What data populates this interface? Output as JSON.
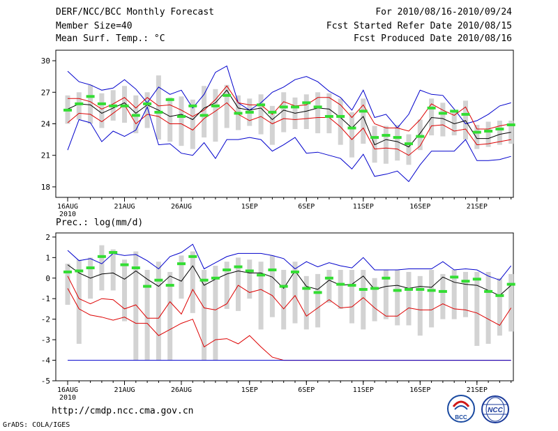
{
  "header": {
    "title": "DERF/NCC/BCC Monthly Forecast",
    "member_size": "Member Size=40",
    "variable": "Mean Surf. Temp.: °C",
    "for_range": "For 2010/08/16-2010/09/24",
    "fcst_started": "Fcst Started Refer Date 2010/08/15",
    "fcst_produced": "Fcst Produced Date 2010/08/16"
  },
  "footer": {
    "url": "http://cmdp.ncc.cma.gov.cn",
    "grads_credit": "GrADS: COLA/IGES",
    "logo_bcc": "BCC",
    "logo_ncc": "NCC"
  },
  "colors": {
    "ensemble_bar": "#d3d3d3",
    "member_marker": "#33dd33",
    "mean_line": "#000000",
    "std_line": "#dd0000",
    "envelope_line": "#0000cc"
  },
  "chart_data": [
    {
      "type": "line",
      "title": "Mean Surf. Temp.: °C",
      "ylim": [
        17,
        31
      ],
      "yticks": [
        18,
        21,
        24,
        27,
        30
      ],
      "xtick_days": [
        0,
        5,
        10,
        16,
        21,
        26,
        31,
        36
      ],
      "xtick_labels": [
        "16AUG",
        "21AUG",
        "26AUG",
        "1SEP",
        "6SEP",
        "11SEP",
        "16SEP",
        "21SEP"
      ],
      "xtick_sublabel": "2010",
      "n_days": 40,
      "series": [
        {
          "name": "max",
          "values": [
            29.0,
            28.0,
            27.7,
            27.2,
            27.4,
            28.2,
            27.3,
            26.0,
            27.5,
            26.8,
            27.2,
            25.5,
            26.8,
            28.9,
            29.5,
            26.0,
            25.3,
            26.0,
            27.0,
            27.5,
            28.2,
            28.5,
            28.0,
            27.1,
            26.5,
            25.3,
            27.2,
            24.6,
            24.9,
            23.6,
            24.9,
            27.2,
            26.8,
            26.7,
            25.4,
            24.0,
            24.3,
            24.9,
            25.7,
            26.0
          ]
        },
        {
          "name": "upper",
          "values": [
            26.4,
            26.4,
            26.1,
            25.4,
            25.9,
            26.5,
            25.5,
            26.5,
            25.7,
            25.8,
            25.3,
            24.7,
            25.3,
            26.3,
            27.6,
            26.0,
            25.8,
            25.8,
            24.9,
            26.1,
            25.7,
            25.8,
            26.5,
            26.5,
            25.8,
            24.6,
            25.8,
            24.0,
            23.6,
            23.6,
            23.3,
            24.4,
            25.9,
            25.3,
            24.8,
            25.6,
            23.5,
            23.5,
            23.8,
            24.0
          ]
        },
        {
          "name": "mean",
          "values": [
            25.4,
            25.9,
            25.8,
            25.0,
            25.5,
            26.0,
            25.0,
            25.8,
            25.3,
            24.7,
            24.9,
            24.4,
            25.5,
            26.0,
            27.2,
            25.5,
            25.3,
            25.5,
            24.4,
            25.3,
            25.0,
            25.2,
            25.5,
            25.4,
            24.6,
            23.6,
            24.7,
            22.0,
            22.5,
            22.3,
            21.8,
            23.1,
            24.6,
            24.5,
            24.0,
            24.3,
            22.6,
            22.6,
            23.0,
            23.2
          ]
        },
        {
          "name": "lower",
          "values": [
            24.1,
            25.0,
            24.9,
            24.2,
            25.0,
            25.8,
            24.0,
            24.9,
            24.7,
            24.0,
            24.0,
            23.4,
            24.5,
            25.2,
            26.0,
            24.9,
            24.3,
            24.7,
            24.0,
            24.5,
            24.4,
            24.5,
            24.6,
            24.6,
            23.7,
            22.5,
            23.6,
            21.6,
            21.7,
            21.6,
            21.0,
            21.9,
            23.8,
            23.9,
            23.3,
            23.5,
            22.0,
            22.1,
            22.3,
            22.5
          ]
        },
        {
          "name": "min",
          "values": [
            21.5,
            24.4,
            24.1,
            22.3,
            23.3,
            22.8,
            23.4,
            25.6,
            22.0,
            22.1,
            21.2,
            21.0,
            22.2,
            20.7,
            22.5,
            22.5,
            22.7,
            22.5,
            21.4,
            22.0,
            22.7,
            21.2,
            21.3,
            21.0,
            20.7,
            19.7,
            21.1,
            19.0,
            19.2,
            19.5,
            18.5,
            20.1,
            21.4,
            21.4,
            21.4,
            22.5,
            20.5,
            20.5,
            20.6,
            20.9
          ]
        },
        {
          "name": "member",
          "values": [
            25.3,
            25.9,
            26.6,
            25.9,
            25.7,
            25.7,
            24.8,
            25.9,
            25.1,
            26.3,
            24.7,
            25.7,
            24.8,
            25.7,
            26.7,
            25.0,
            25.1,
            25.8,
            25.1,
            25.6,
            25.6,
            26.0,
            25.6,
            24.7,
            24.7,
            23.6,
            25.2,
            22.7,
            22.9,
            22.7,
            22.1,
            22.8,
            25.5,
            25.0,
            25.2,
            24.9,
            23.2,
            23.3,
            23.5,
            23.9
          ]
        },
        {
          "name": "range_top",
          "values": [
            26.7,
            27.0,
            27.7,
            26.9,
            27.2,
            27.6,
            26.7,
            27.0,
            28.6,
            26.5,
            26.6,
            26.3,
            27.6,
            27.3,
            27.7,
            26.7,
            26.4,
            26.8,
            25.7,
            27.0,
            26.5,
            26.8,
            27.0,
            26.9,
            26.4,
            25.1,
            26.4,
            23.8,
            23.8,
            23.9,
            23.0,
            24.4,
            26.4,
            26.0,
            25.3,
            26.2,
            23.9,
            24.2,
            24.3,
            24.3
          ]
        },
        {
          "name": "range_bottom",
          "values": [
            24.0,
            24.4,
            24.0,
            23.6,
            24.3,
            24.1,
            23.1,
            23.6,
            22.5,
            22.3,
            21.9,
            21.6,
            22.7,
            22.3,
            23.6,
            23.4,
            23.8,
            23.0,
            22.0,
            23.2,
            23.5,
            23.5,
            23.1,
            23.1,
            22.0,
            20.8,
            22.1,
            20.3,
            20.2,
            20.5,
            20.1,
            21.5,
            22.9,
            22.8,
            22.9,
            22.5,
            21.6,
            21.8,
            22.0,
            22.1
          ]
        }
      ]
    },
    {
      "type": "line",
      "title": "Prec.: log(mm/d)",
      "ylim": [
        -5,
        2.2
      ],
      "yticks": [
        -5,
        -4,
        -3,
        -2,
        -1,
        0,
        1,
        2
      ],
      "xtick_days": [
        0,
        5,
        10,
        16,
        21,
        26,
        31,
        36
      ],
      "xtick_labels": [
        "16AUG",
        "21AUG",
        "26AUG",
        "1SEP",
        "6SEP",
        "11SEP",
        "16SEP",
        "21SEP"
      ],
      "xtick_sublabel": "2010",
      "n_days": 40,
      "series": [
        {
          "name": "max",
          "values": [
            1.35,
            0.85,
            0.95,
            0.7,
            1.2,
            1.1,
            1.15,
            0.85,
            0.45,
            1.05,
            1.25,
            1.65,
            0.45,
            0.75,
            1.05,
            1.2,
            1.2,
            1.2,
            1.1,
            0.95,
            0.45,
            0.8,
            0.55,
            0.75,
            0.6,
            0.5,
            1.0,
            0.4,
            0.4,
            0.4,
            0.45,
            0.45,
            0.45,
            0.8,
            0.4,
            0.45,
            0.4,
            0.1,
            -0.1,
            0.6
          ]
        },
        {
          "name": "mean",
          "values": [
            0.65,
            0.25,
            0.0,
            0.2,
            0.25,
            -0.05,
            0.35,
            -0.05,
            -0.4,
            0.1,
            -0.15,
            0.6,
            -0.35,
            -0.05,
            0.2,
            0.35,
            0.25,
            0.25,
            0.05,
            -0.5,
            0.35,
            -0.4,
            -0.55,
            -0.1,
            -0.35,
            -0.3,
            0.1,
            -0.55,
            -0.4,
            -0.35,
            -0.5,
            -0.4,
            -0.45,
            0.05,
            -0.2,
            -0.3,
            -0.35,
            -0.6,
            -0.85,
            -0.35
          ]
        },
        {
          "name": "upper_red",
          "values": [
            0.1,
            -1.0,
            -1.25,
            -1.0,
            -1.05,
            -1.5,
            -1.3,
            -1.95,
            -1.95,
            -1.15,
            -1.75,
            -0.55,
            -1.45,
            -1.55,
            -1.25,
            -0.35,
            -0.7,
            -0.55,
            -0.85,
            -1.5,
            -0.85,
            -1.85,
            -1.45,
            -1.05,
            -1.45,
            -1.4,
            -0.95,
            -1.45,
            -1.85,
            -1.85,
            -1.45,
            -1.55,
            -1.55,
            -1.25,
            -1.5,
            -1.55,
            -1.7,
            -2.0,
            -2.3,
            -1.45
          ]
        },
        {
          "name": "lower_red",
          "values": [
            -0.5,
            -1.5,
            -1.8,
            -1.9,
            -2.05,
            -1.9,
            -2.2,
            -2.2,
            -2.8,
            -2.5,
            -2.2,
            -2.0,
            -3.35,
            -3.0,
            -2.95,
            -3.2,
            -2.8,
            -3.35,
            -3.85,
            -4.0,
            -4.0,
            -4.0,
            -4.0,
            -4.0,
            -4.0,
            -4.0,
            -4.0,
            -4.0,
            -4.0,
            -4.0,
            -4.0,
            -4.0,
            -4.0,
            -4.0,
            -4.0,
            -4.0,
            -4.0,
            -4.0,
            -4.0,
            -4.0
          ]
        },
        {
          "name": "min",
          "values": [
            -4.0,
            -4.0,
            -4.0,
            -4.0,
            -4.0,
            -4.0,
            -4.0,
            -4.0,
            -4.0,
            -4.0,
            -4.0,
            -4.0,
            -4.0,
            -4.0,
            -4.0,
            -4.0,
            -4.0,
            -4.0,
            -4.0,
            -4.0,
            -4.0,
            -4.0,
            -4.0,
            -4.0,
            -4.0,
            -4.0,
            -4.0,
            -4.0,
            -4.0,
            -4.0,
            -4.0,
            -4.0,
            -4.0,
            -4.0,
            -4.0,
            -4.0,
            -4.0,
            -4.0,
            -4.0,
            -4.0
          ]
        },
        {
          "name": "member",
          "values": [
            0.3,
            0.35,
            0.5,
            1.05,
            1.25,
            0.65,
            0.5,
            -0.4,
            -0.1,
            -0.35,
            0.7,
            1.05,
            -0.1,
            0.0,
            0.4,
            0.55,
            0.35,
            0.15,
            0.4,
            -0.4,
            0.3,
            -0.5,
            -0.7,
            0.0,
            -0.3,
            -0.35,
            -0.55,
            -0.5,
            0.0,
            -0.6,
            -0.55,
            -0.55,
            -0.6,
            -0.65,
            0.05,
            -0.15,
            -0.05,
            -0.65,
            -0.85,
            -0.3
          ]
        },
        {
          "name": "range_top",
          "values": [
            0.7,
            0.9,
            1.0,
            1.6,
            1.4,
            0.9,
            1.3,
            0.4,
            0.8,
            0.3,
            1.1,
            1.3,
            0.4,
            0.6,
            0.8,
            1.0,
            0.9,
            0.8,
            1.1,
            0.4,
            0.8,
            0.1,
            0.2,
            0.4,
            0.4,
            0.4,
            0.4,
            0.0,
            0.4,
            0.4,
            0.3,
            0.1,
            0.4,
            0.2,
            0.4,
            0.3,
            0.3,
            0.3,
            0.0,
            0.2
          ]
        },
        {
          "name": "range_bottom",
          "values": [
            -1.3,
            -3.2,
            -1.0,
            -0.6,
            -0.6,
            -2.1,
            -4.0,
            -4.0,
            -4.0,
            -4.0,
            -1.0,
            -1.7,
            -4.0,
            -4.0,
            -1.5,
            -1.6,
            -1.0,
            -2.5,
            -1.9,
            -2.5,
            -2.2,
            -2.5,
            -2.4,
            -1.2,
            -1.5,
            -2.2,
            -2.5,
            -2.1,
            -2.0,
            -2.3,
            -2.3,
            -2.8,
            -2.4,
            -2.0,
            -2.0,
            -1.9,
            -3.3,
            -3.2,
            -2.8,
            -2.6
          ]
        }
      ]
    }
  ]
}
